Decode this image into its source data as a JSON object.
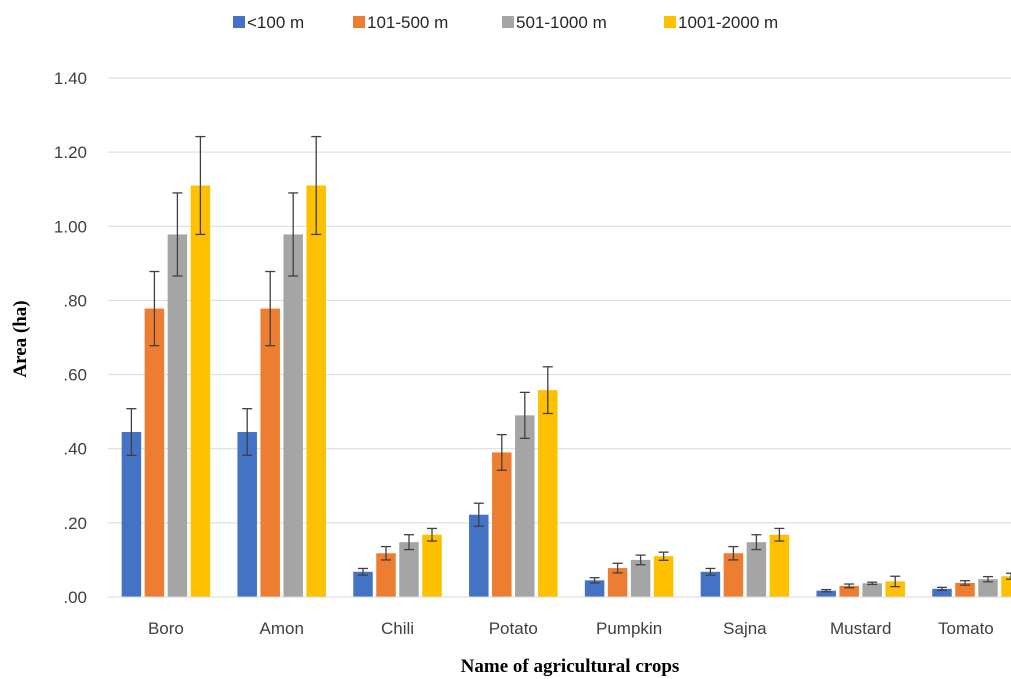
{
  "chart_data": {
    "type": "bar",
    "title": "",
    "xlabel": "Name of agricultural crops",
    "ylabel": "Area (ha)",
    "ylim": [
      0,
      1.4
    ],
    "yticks": [
      {
        "value": 0.0,
        "label": ".00"
      },
      {
        "value": 0.2,
        "label": ".20"
      },
      {
        "value": 0.4,
        "label": ".40"
      },
      {
        "value": 0.6,
        "label": ".60"
      },
      {
        "value": 0.8,
        "label": ".80"
      },
      {
        "value": 1.0,
        "label": "1.00"
      },
      {
        "value": 1.2,
        "label": "1.20"
      },
      {
        "value": 1.4,
        "label": "1.40"
      }
    ],
    "categories": [
      "Boro",
      "Amon",
      "Chili",
      "Potato",
      "Pumpkin",
      "Sajna",
      "Mustard",
      "Tomato"
    ],
    "grid": "horizontal",
    "legend": "top",
    "error_bars": true,
    "series": [
      {
        "name": "<100 m",
        "color": "#4472c4",
        "values": [
          0.445,
          0.445,
          0.068,
          0.222,
          0.045,
          0.068,
          0.017,
          0.022
        ],
        "errors": [
          0.063,
          0.063,
          0.009,
          0.031,
          0.007,
          0.009,
          0.003,
          0.004
        ]
      },
      {
        "name": "101-500 m",
        "color": "#ed7d31",
        "values": [
          0.778,
          0.778,
          0.118,
          0.39,
          0.078,
          0.118,
          0.03,
          0.038
        ],
        "errors": [
          0.1,
          0.1,
          0.018,
          0.048,
          0.013,
          0.018,
          0.005,
          0.006
        ]
      },
      {
        "name": "501-1000 m",
        "color": "#a5a5a5",
        "values": [
          0.978,
          0.978,
          0.148,
          0.49,
          0.1,
          0.148,
          0.037,
          0.048
        ],
        "errors": [
          0.112,
          0.112,
          0.02,
          0.062,
          0.013,
          0.02,
          0.003,
          0.007
        ]
      },
      {
        "name": "1001-2000 m",
        "color": "#ffc000",
        "values": [
          1.11,
          1.11,
          0.168,
          0.558,
          0.11,
          0.168,
          0.042,
          0.056
        ],
        "errors": [
          0.132,
          0.132,
          0.017,
          0.063,
          0.011,
          0.017,
          0.014,
          0.008
        ]
      }
    ]
  }
}
